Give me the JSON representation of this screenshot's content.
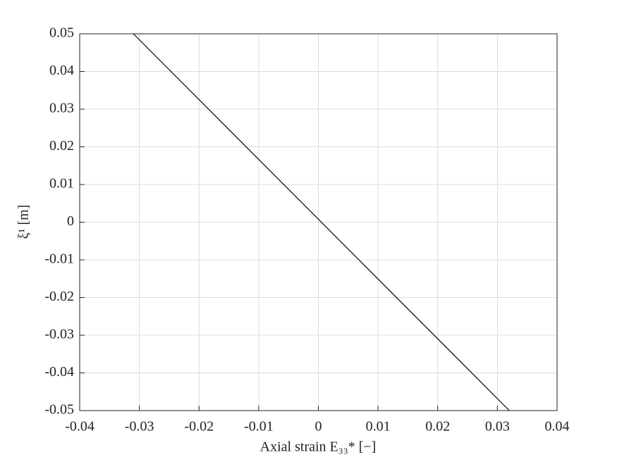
{
  "chart_data": {
    "type": "line",
    "x_label": "Axial strain E₃₃* [−]",
    "y_label": "ξ¹ [m]",
    "series": [
      {
        "name": "ξ¹",
        "color": "#000000",
        "x": [
          -0.031,
          0.032
        ],
        "values": [
          0.05,
          -0.05
        ]
      }
    ],
    "xlim": [
      -0.04,
      0.04
    ],
    "xticks": [
      -0.04,
      -0.03,
      -0.02,
      -0.01,
      0,
      0.01,
      0.02,
      0.03,
      0.04
    ],
    "ylim": [
      -0.05,
      0.05
    ],
    "yticks": [
      -0.05,
      -0.04,
      -0.03,
      -0.02,
      -0.01,
      0,
      0.01,
      0.02,
      0.03,
      0.04,
      0.05
    ],
    "grid": true
  }
}
